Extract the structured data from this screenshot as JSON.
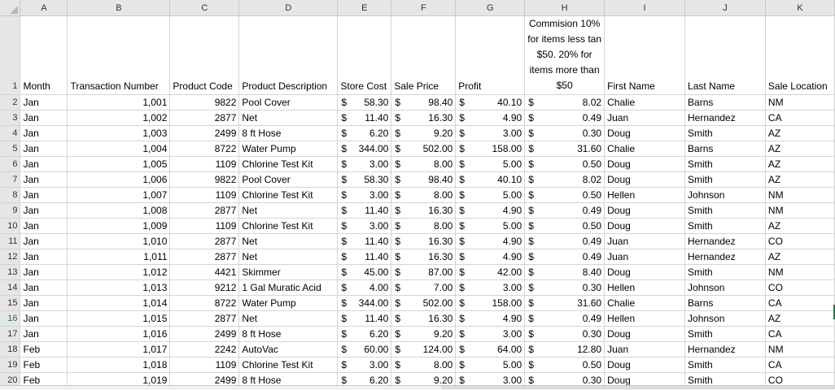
{
  "columns": [
    "A",
    "B",
    "C",
    "D",
    "E",
    "F",
    "G",
    "H",
    "I",
    "J",
    "K"
  ],
  "headers": {
    "month": "Month",
    "transaction_number": "Transaction Number",
    "product_code": "Product Code",
    "product_description": "Product Description",
    "store_cost": "Store Cost",
    "sale_price": "Sale Price",
    "profit": "Profit",
    "commission": "Commision 10% for items less tan $50. 20% for items more than $50",
    "first_name": "First Name",
    "last_name": "Last Name",
    "sale_location": "Sale Location"
  },
  "currency_symbol": "$",
  "rows": [
    {
      "num": "2",
      "month": "Jan",
      "txn": "1,001",
      "code": "9822",
      "desc": "Pool Cover",
      "cost": "58.30",
      "price": "98.40",
      "profit": "40.10",
      "comm": "8.02",
      "first": "Chalie",
      "last": "Barns",
      "loc": "NM"
    },
    {
      "num": "3",
      "month": "Jan",
      "txn": "1,002",
      "code": "2877",
      "desc": "Net",
      "cost": "11.40",
      "price": "16.30",
      "profit": "4.90",
      "comm": "0.49",
      "first": "Juan",
      "last": "Hernandez",
      "loc": "CA"
    },
    {
      "num": "4",
      "month": "Jan",
      "txn": "1,003",
      "code": "2499",
      "desc": "8 ft Hose",
      "cost": "6.20",
      "price": "9.20",
      "profit": "3.00",
      "comm": "0.30",
      "first": "Doug",
      "last": "Smith",
      "loc": "AZ"
    },
    {
      "num": "5",
      "month": "Jan",
      "txn": "1,004",
      "code": "8722",
      "desc": "Water Pump",
      "cost": "344.00",
      "price": "502.00",
      "profit": "158.00",
      "comm": "31.60",
      "first": "Chalie",
      "last": "Barns",
      "loc": "AZ"
    },
    {
      "num": "6",
      "month": "Jan",
      "txn": "1,005",
      "code": "1109",
      "desc": "Chlorine Test Kit",
      "cost": "3.00",
      "price": "8.00",
      "profit": "5.00",
      "comm": "0.50",
      "first": "Doug",
      "last": "Smith",
      "loc": "AZ"
    },
    {
      "num": "7",
      "month": "Jan",
      "txn": "1,006",
      "code": "9822",
      "desc": "Pool Cover",
      "cost": "58.30",
      "price": "98.40",
      "profit": "40.10",
      "comm": "8.02",
      "first": "Doug",
      "last": "Smith",
      "loc": "AZ"
    },
    {
      "num": "8",
      "month": "Jan",
      "txn": "1,007",
      "code": "1109",
      "desc": "Chlorine Test Kit",
      "cost": "3.00",
      "price": "8.00",
      "profit": "5.00",
      "comm": "0.50",
      "first": "Hellen",
      "last": "Johnson",
      "loc": "NM"
    },
    {
      "num": "9",
      "month": "Jan",
      "txn": "1,008",
      "code": "2877",
      "desc": "Net",
      "cost": "11.40",
      "price": "16.30",
      "profit": "4.90",
      "comm": "0.49",
      "first": "Doug",
      "last": "Smith",
      "loc": "NM"
    },
    {
      "num": "10",
      "month": "Jan",
      "txn": "1,009",
      "code": "1109",
      "desc": "Chlorine Test Kit",
      "cost": "3.00",
      "price": "8.00",
      "profit": "5.00",
      "comm": "0.50",
      "first": "Doug",
      "last": "Smith",
      "loc": "AZ"
    },
    {
      "num": "11",
      "month": "Jan",
      "txn": "1,010",
      "code": "2877",
      "desc": "Net",
      "cost": "11.40",
      "price": "16.30",
      "profit": "4.90",
      "comm": "0.49",
      "first": "Juan",
      "last": "Hernandez",
      "loc": "CO"
    },
    {
      "num": "12",
      "month": "Jan",
      "txn": "1,011",
      "code": "2877",
      "desc": "Net",
      "cost": "11.40",
      "price": "16.30",
      "profit": "4.90",
      "comm": "0.49",
      "first": "Juan",
      "last": "Hernandez",
      "loc": "AZ"
    },
    {
      "num": "13",
      "month": "Jan",
      "txn": "1,012",
      "code": "4421",
      "desc": "Skimmer",
      "cost": "45.00",
      "price": "87.00",
      "profit": "42.00",
      "comm": "8.40",
      "first": "Doug",
      "last": "Smith",
      "loc": "NM"
    },
    {
      "num": "14",
      "month": "Jan",
      "txn": "1,013",
      "code": "9212",
      "desc": "1 Gal Muratic Acid",
      "cost": "4.00",
      "price": "7.00",
      "profit": "3.00",
      "comm": "0.30",
      "first": "Hellen",
      "last": "Johnson",
      "loc": "CO"
    },
    {
      "num": "15",
      "month": "Jan",
      "txn": "1,014",
      "code": "8722",
      "desc": "Water Pump",
      "cost": "344.00",
      "price": "502.00",
      "profit": "158.00",
      "comm": "31.60",
      "first": "Chalie",
      "last": "Barns",
      "loc": "CA"
    },
    {
      "num": "16",
      "month": "Jan",
      "txn": "1,015",
      "code": "2877",
      "desc": "Net",
      "cost": "11.40",
      "price": "16.30",
      "profit": "4.90",
      "comm": "0.49",
      "first": "Hellen",
      "last": "Johnson",
      "loc": "AZ"
    },
    {
      "num": "17",
      "month": "Jan",
      "txn": "1,016",
      "code": "2499",
      "desc": "8 ft Hose",
      "cost": "6.20",
      "price": "9.20",
      "profit": "3.00",
      "comm": "0.30",
      "first": "Doug",
      "last": "Smith",
      "loc": "CA"
    },
    {
      "num": "18",
      "month": "Feb",
      "txn": "1,017",
      "code": "2242",
      "desc": "AutoVac",
      "cost": "60.00",
      "price": "124.00",
      "profit": "64.00",
      "comm": "12.80",
      "first": "Juan",
      "last": "Hernandez",
      "loc": "NM"
    },
    {
      "num": "19",
      "month": "Feb",
      "txn": "1,018",
      "code": "1109",
      "desc": "Chlorine Test Kit",
      "cost": "3.00",
      "price": "8.00",
      "profit": "5.00",
      "comm": "0.50",
      "first": "Doug",
      "last": "Smith",
      "loc": "CA"
    },
    {
      "num": "20",
      "month": "Feb",
      "txn": "1,019",
      "code": "2499",
      "desc": "8 ft Hose",
      "cost": "6.20",
      "price": "9.20",
      "profit": "3.00",
      "comm": "0.30",
      "first": "Doug",
      "last": "Smith",
      "loc": "CO"
    }
  ],
  "selected_row_index": 14
}
